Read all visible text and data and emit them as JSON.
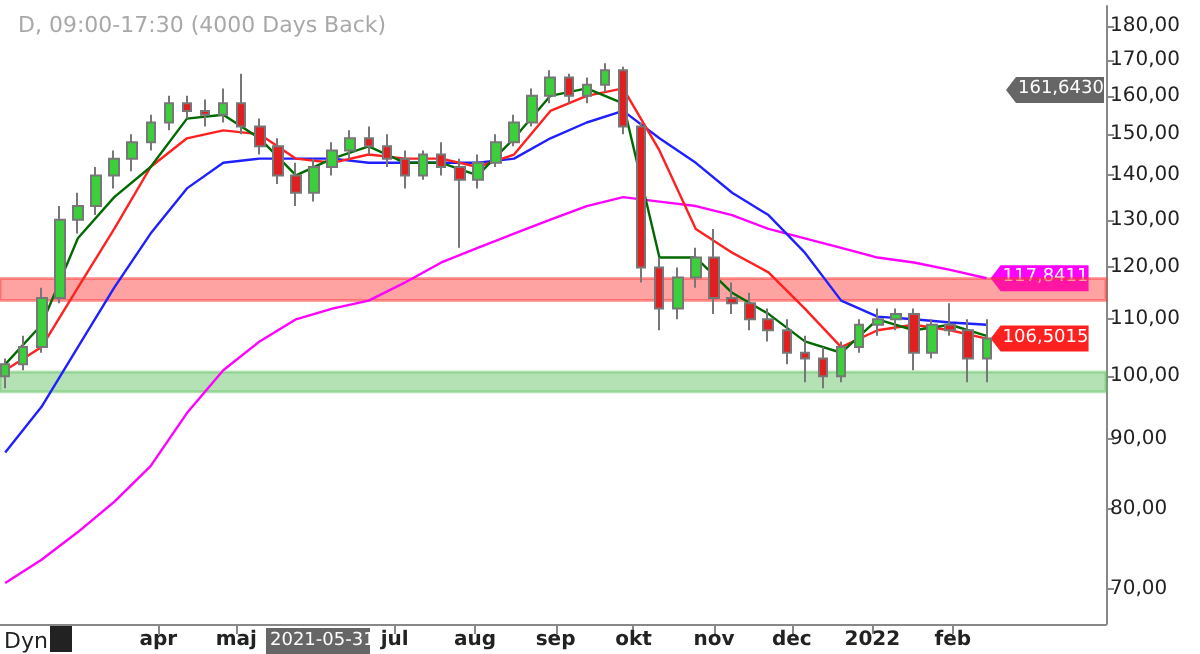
{
  "chart_data": {
    "type": "candlestick",
    "title": "D, 09:00-17:30 (4000 Days Back)",
    "x": [
      "2021-02-01",
      "2021-02-08",
      "2021-02-15",
      "2021-02-22",
      "2021-03-01",
      "2021-03-08",
      "2021-03-15",
      "2021-03-22",
      "2021-03-29",
      "2021-04-05",
      "2021-04-12",
      "2021-04-19",
      "2021-04-26",
      "2021-05-03",
      "2021-05-10",
      "2021-05-17",
      "2021-05-24",
      "2021-05-31",
      "2021-06-07",
      "2021-06-14",
      "2021-06-21",
      "2021-06-28",
      "2021-07-05",
      "2021-07-12",
      "2021-07-19",
      "2021-07-26",
      "2021-08-02",
      "2021-08-09",
      "2021-08-16",
      "2021-08-23",
      "2021-08-30",
      "2021-09-06",
      "2021-09-13",
      "2021-09-20",
      "2021-09-27",
      "2021-10-04",
      "2021-10-11",
      "2021-10-18",
      "2021-10-25",
      "2021-11-01",
      "2021-11-08",
      "2021-11-15",
      "2021-11-22",
      "2021-11-29",
      "2021-12-06",
      "2021-12-13",
      "2021-12-20",
      "2021-12-27",
      "2022-01-03",
      "2022-01-10",
      "2022-01-17",
      "2022-01-24",
      "2022-01-31",
      "2022-02-07",
      "2022-02-14"
    ],
    "ohlc": [
      [
        100,
        103,
        98,
        102
      ],
      [
        102,
        107,
        101,
        105
      ],
      [
        105,
        116,
        104,
        114
      ],
      [
        114,
        133,
        113,
        130
      ],
      [
        130,
        136,
        127,
        133
      ],
      [
        133,
        142,
        131,
        140
      ],
      [
        140,
        146,
        137,
        144
      ],
      [
        144,
        150,
        141,
        148
      ],
      [
        148,
        155,
        146,
        153
      ],
      [
        153,
        160,
        151,
        158
      ],
      [
        158,
        160,
        154,
        156
      ],
      [
        156,
        159,
        152,
        155
      ],
      [
        155,
        162,
        153,
        158
      ],
      [
        158,
        166,
        150,
        152
      ],
      [
        152,
        154,
        145,
        147
      ],
      [
        147,
        149,
        138,
        140
      ],
      [
        140,
        143,
        133,
        136
      ],
      [
        136,
        144,
        134,
        142
      ],
      [
        142,
        148,
        140,
        146
      ],
      [
        146,
        151,
        144,
        149
      ],
      [
        149,
        152,
        145,
        147
      ],
      [
        147,
        150,
        142,
        144
      ],
      [
        144,
        146,
        137,
        140
      ],
      [
        140,
        146,
        139,
        145
      ],
      [
        145,
        148,
        140,
        142
      ],
      [
        142,
        144,
        124,
        139
      ],
      [
        139,
        145,
        137,
        143
      ],
      [
        143,
        150,
        142,
        148
      ],
      [
        148,
        155,
        147,
        153
      ],
      [
        153,
        162,
        152,
        160
      ],
      [
        160,
        167,
        158,
        165
      ],
      [
        165,
        166,
        158,
        160
      ],
      [
        160,
        165,
        158,
        163
      ],
      [
        163,
        169,
        161,
        167
      ],
      [
        167,
        168,
        150,
        152
      ],
      [
        152,
        153,
        117,
        120
      ],
      [
        120,
        122,
        108,
        112
      ],
      [
        112,
        120,
        110,
        118
      ],
      [
        118,
        124,
        116,
        122
      ],
      [
        122,
        128,
        111,
        114
      ],
      [
        114,
        117,
        111,
        113
      ],
      [
        113,
        115,
        108,
        110
      ],
      [
        110,
        112,
        106,
        108
      ],
      [
        108,
        110,
        102,
        104
      ],
      [
        104,
        107,
        99,
        103
      ],
      [
        103,
        105,
        98,
        100
      ],
      [
        100,
        106,
        99,
        105
      ],
      [
        105,
        110,
        104,
        109
      ],
      [
        109,
        112,
        107,
        110
      ],
      [
        110,
        112,
        108,
        111
      ],
      [
        111,
        112,
        101,
        104
      ],
      [
        104,
        110,
        103,
        109
      ],
      [
        109,
        113,
        107,
        108
      ],
      [
        108,
        110,
        99,
        103
      ],
      [
        103,
        110,
        99,
        106.5
      ]
    ],
    "series": [
      {
        "type": "line",
        "color": "#ff00ff",
        "x": [
          "2021-02-01",
          "2021-02-15",
          "2021-03-01",
          "2021-03-15",
          "2021-03-29",
          "2021-04-12",
          "2021-04-26",
          "2021-05-10",
          "2021-05-24",
          "2021-06-07",
          "2021-06-21",
          "2021-07-05",
          "2021-07-19",
          "2021-08-02",
          "2021-08-16",
          "2021-08-30",
          "2021-09-13",
          "2021-09-27",
          "2021-10-11",
          "2021-10-25",
          "2021-11-08",
          "2021-11-22",
          "2021-12-06",
          "2021-12-20",
          "2022-01-03",
          "2022-01-17",
          "2022-01-31",
          "2022-02-14"
        ],
        "values": [
          70.7,
          73.5,
          77,
          81,
          86,
          94,
          101,
          106,
          110,
          112,
          113.5,
          117,
          121,
          124,
          127,
          130,
          133,
          135,
          134,
          133,
          131,
          128,
          126,
          124,
          122,
          121,
          119.5,
          117.8411
        ],
        "value_labels": [
          null,
          null,
          null,
          null,
          null,
          null,
          null,
          null,
          null,
          null,
          null,
          null,
          null,
          null,
          null,
          null,
          null,
          null,
          null,
          null,
          null,
          null,
          null,
          null,
          null,
          null,
          null,
          "117,8411"
        ]
      },
      {
        "type": "line",
        "color": "#2020ff",
        "x": [
          "2021-02-01",
          "2021-02-15",
          "2021-03-01",
          "2021-03-15",
          "2021-03-29",
          "2021-04-12",
          "2021-04-26",
          "2021-05-10",
          "2021-05-24",
          "2021-06-07",
          "2021-06-21",
          "2021-07-05",
          "2021-07-19",
          "2021-08-02",
          "2021-08-16",
          "2021-08-30",
          "2021-09-13",
          "2021-09-27",
          "2021-10-11",
          "2021-10-25",
          "2021-11-08",
          "2021-11-22",
          "2021-12-06",
          "2021-12-20",
          "2022-01-03",
          "2022-01-17",
          "2022-01-31",
          "2022-02-14"
        ],
        "values": [
          88,
          95,
          105,
          116,
          127,
          137,
          143,
          144,
          144,
          144,
          143,
          143,
          143,
          143,
          144,
          149,
          153,
          156,
          149,
          143,
          136,
          131,
          123,
          113.5,
          110.5,
          110,
          109.4,
          109
        ]
      },
      {
        "type": "line",
        "color": "#ff2020",
        "x": [
          "2021-02-01",
          "2021-02-15",
          "2021-03-01",
          "2021-03-15",
          "2021-03-29",
          "2021-04-12",
          "2021-04-26",
          "2021-05-10",
          "2021-05-24",
          "2021-06-07",
          "2021-06-21",
          "2021-07-05",
          "2021-07-19",
          "2021-08-02",
          "2021-08-16",
          "2021-08-30",
          "2021-09-13",
          "2021-09-27",
          "2021-10-11",
          "2021-10-25",
          "2021-11-08",
          "2021-11-22",
          "2021-12-06",
          "2021-12-20",
          "2022-01-03",
          "2022-01-17",
          "2022-01-31",
          "2022-02-14"
        ],
        "values": [
          101,
          105,
          116,
          128,
          142,
          149,
          151,
          150,
          144,
          143,
          145,
          144,
          144,
          142,
          145,
          156,
          160,
          162,
          146,
          128,
          123,
          119,
          112,
          105,
          108,
          109,
          108,
          106.5015
        ],
        "value_labels": [
          null,
          null,
          null,
          null,
          null,
          null,
          null,
          null,
          null,
          null,
          null,
          null,
          null,
          null,
          null,
          null,
          null,
          null,
          null,
          null,
          null,
          null,
          null,
          null,
          null,
          null,
          null,
          "106,5015"
        ]
      },
      {
        "type": "line",
        "color": "#006a00",
        "x": [
          "2021-02-01",
          "2021-02-15",
          "2021-03-01",
          "2021-03-15",
          "2021-03-29",
          "2021-04-12",
          "2021-04-26",
          "2021-05-10",
          "2021-05-24",
          "2021-06-07",
          "2021-06-21",
          "2021-07-05",
          "2021-07-19",
          "2021-08-02",
          "2021-08-16",
          "2021-08-30",
          "2021-09-13",
          "2021-09-27",
          "2021-10-11",
          "2021-10-25",
          "2021-11-08",
          "2021-11-22",
          "2021-12-06",
          "2021-12-20",
          "2022-01-03",
          "2022-01-17",
          "2022-01-31",
          "2022-02-14"
        ],
        "values": [
          102,
          109,
          126,
          135,
          142,
          154,
          155,
          149,
          140,
          144,
          147,
          143,
          143,
          140,
          149,
          160,
          162,
          158,
          122,
          122,
          115,
          111,
          106,
          104,
          110,
          108,
          109,
          107
        ]
      }
    ],
    "bands": [
      {
        "axis": "y",
        "from": 97.4,
        "to": 100.7,
        "color": "#5cbf5c"
      },
      {
        "axis": "y",
        "from": 113.5,
        "to": 117.8,
        "color": "#ff3030"
      }
    ],
    "annotations": [
      "Dyn",
      "2021-05-31",
      "161,6430"
    ],
    "xlim": [
      "2021-01-30",
      "2022-04-01"
    ],
    "xticks": [
      {
        "value": "2021-04-01",
        "label": "apr"
      },
      {
        "value": "2021-05-01",
        "label": "maj"
      },
      {
        "value": "2021-07-01",
        "label": "jul"
      },
      {
        "value": "2021-08-01",
        "label": "aug"
      },
      {
        "value": "2021-09-01",
        "label": "sep"
      },
      {
        "value": "2021-10-01",
        "label": "okt"
      },
      {
        "value": "2021-11-01",
        "label": "nov"
      },
      {
        "value": "2021-12-01",
        "label": "dec"
      },
      {
        "value": "2022-01-01",
        "label": "2022"
      },
      {
        "value": "2022-02-01",
        "label": "feb"
      }
    ],
    "ylim": [
      66,
      186
    ],
    "yticks": [
      {
        "value": 70,
        "label": "70,00"
      },
      {
        "value": 80,
        "label": "80,00"
      },
      {
        "value": 90,
        "label": "90,00"
      },
      {
        "value": 100,
        "label": "100,00"
      },
      {
        "value": 110,
        "label": "110,00"
      },
      {
        "value": 120,
        "label": "120,00"
      },
      {
        "value": 130,
        "label": "130,00"
      },
      {
        "value": 140,
        "label": "140,00"
      },
      {
        "value": 150,
        "label": "150,00"
      },
      {
        "value": 160,
        "label": "160,00"
      },
      {
        "value": 170,
        "label": "170,00"
      },
      {
        "value": 180,
        "label": "180,00"
      }
    ],
    "log": "y"
  }
}
